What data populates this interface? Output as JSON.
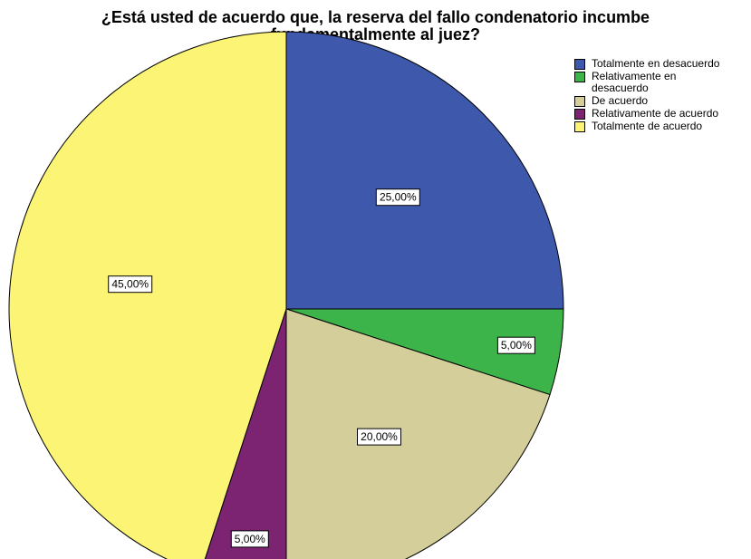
{
  "chart_data": {
    "type": "pie",
    "title_lines": [
      "¿Está usted de acuerdo que, la reserva del fallo condenatorio incumbe",
      "fundamentalmente al juez?"
    ],
    "slices": [
      {
        "name_lines": [
          "Totalmente en desacuerdo"
        ],
        "value": 25.0,
        "label": "25,00%",
        "color": "#3e58ac"
      },
      {
        "name_lines": [
          "Relativamente en",
          "desacuerdo"
        ],
        "value": 5.0,
        "label": "5,00%",
        "color": "#3cb44a"
      },
      {
        "name_lines": [
          "De acuerdo"
        ],
        "value": 20.0,
        "label": "20,00%",
        "color": "#d3ce9a"
      },
      {
        "name_lines": [
          "Relativamente de acuerdo"
        ],
        "value": 5.0,
        "label": "5,00%",
        "color": "#7c2472"
      },
      {
        "name_lines": [
          "Totalmente de acuerdo"
        ],
        "value": 45.0,
        "label": "45,00%",
        "color": "#fcf475"
      }
    ],
    "start_direction": "12 o'clock",
    "direction": "clockwise",
    "legend_position": "top-right"
  }
}
